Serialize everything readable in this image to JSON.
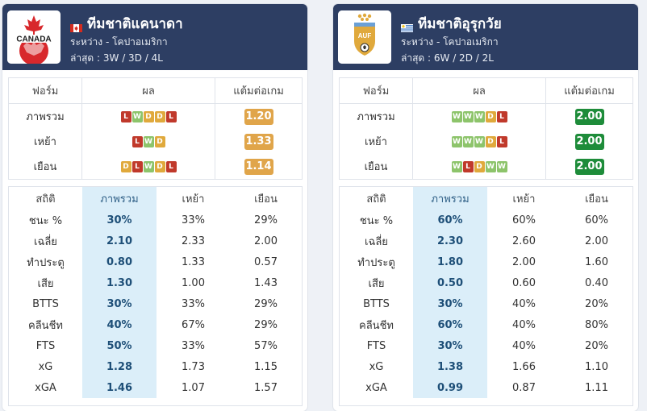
{
  "teams": [
    {
      "name": "ทีมชาติแคนาดา",
      "flag": "canada-flag",
      "logo_text": "CANADA",
      "competition": "ระหว่าง - โคปาอเมริกา",
      "recent": "ล่าสุด : 3W / 3D / 4L",
      "form_headers": [
        "ฟอร์ม",
        "ผล",
        "แต้มต่อเกม"
      ],
      "form_rows": [
        {
          "label": "ภาพรวม",
          "results": [
            "L",
            "W",
            "D",
            "D",
            "L"
          ],
          "ppg": "1.20"
        },
        {
          "label": "เหย้า",
          "results": [
            "L",
            "W",
            "D"
          ],
          "ppg": "1.33"
        },
        {
          "label": "เยือน",
          "results": [
            "D",
            "L",
            "W",
            "D",
            "L"
          ],
          "ppg": "1.14"
        }
      ],
      "ppg_color": "orange",
      "stat_headers": [
        "สถิติ",
        "ภาพรวม",
        "เหย้า",
        "เยือน"
      ],
      "stat_rows": [
        {
          "label": "ชนะ %",
          "overall": "30%",
          "home": "33%",
          "away": "29%"
        },
        {
          "label": "เฉลี่ย",
          "overall": "2.10",
          "home": "2.33",
          "away": "2.00"
        },
        {
          "label": "ทำประตู",
          "overall": "0.80",
          "home": "1.33",
          "away": "0.57"
        },
        {
          "label": "เสีย",
          "overall": "1.30",
          "home": "1.00",
          "away": "1.43"
        },
        {
          "label": "BTTS",
          "overall": "30%",
          "home": "33%",
          "away": "29%"
        },
        {
          "label": "คลีนชีท",
          "overall": "40%",
          "home": "67%",
          "away": "29%"
        },
        {
          "label": "FTS",
          "overall": "50%",
          "home": "33%",
          "away": "57%"
        },
        {
          "label": "xG",
          "overall": "1.28",
          "home": "1.73",
          "away": "1.15"
        },
        {
          "label": "xGA",
          "overall": "1.46",
          "home": "1.07",
          "away": "1.57"
        }
      ]
    },
    {
      "name": "ทีมชาติอุรุกวัย",
      "flag": "uruguay-flag",
      "logo_text": "AUF",
      "competition": "ระหว่าง - โคปาอเมริกา",
      "recent": "ล่าสุด : 6W / 2D / 2L",
      "form_headers": [
        "ฟอร์ม",
        "ผล",
        "แต้มต่อเกม"
      ],
      "form_rows": [
        {
          "label": "ภาพรวม",
          "results": [
            "W",
            "W",
            "W",
            "D",
            "L"
          ],
          "ppg": "2.00"
        },
        {
          "label": "เหย้า",
          "results": [
            "W",
            "W",
            "W",
            "D",
            "L"
          ],
          "ppg": "2.00"
        },
        {
          "label": "เยือน",
          "results": [
            "W",
            "L",
            "D",
            "W",
            "W"
          ],
          "ppg": "2.00"
        }
      ],
      "ppg_color": "green",
      "stat_headers": [
        "สถิติ",
        "ภาพรวม",
        "เหย้า",
        "เยือน"
      ],
      "stat_rows": [
        {
          "label": "ชนะ %",
          "overall": "60%",
          "home": "60%",
          "away": "60%"
        },
        {
          "label": "เฉลี่ย",
          "overall": "2.30",
          "home": "2.60",
          "away": "2.00"
        },
        {
          "label": "ทำประตู",
          "overall": "1.80",
          "home": "2.00",
          "away": "1.60"
        },
        {
          "label": "เสีย",
          "overall": "0.50",
          "home": "0.60",
          "away": "0.40"
        },
        {
          "label": "BTTS",
          "overall": "30%",
          "home": "40%",
          "away": "20%"
        },
        {
          "label": "คลีนชีท",
          "overall": "60%",
          "home": "40%",
          "away": "80%"
        },
        {
          "label": "FTS",
          "overall": "30%",
          "home": "40%",
          "away": "20%"
        },
        {
          "label": "xG",
          "overall": "1.38",
          "home": "1.66",
          "away": "1.10"
        },
        {
          "label": "xGA",
          "overall": "0.99",
          "home": "0.87",
          "away": "1.11"
        }
      ]
    }
  ],
  "colors": {
    "header_bg": "#2d3e63",
    "win": "#8dc46b",
    "loss": "#c0392b",
    "draw": "#e0a93c",
    "ppg_orange": "#e0a54a",
    "ppg_green": "#1e8c3a",
    "overall_col_bg": "#dbeef9"
  }
}
